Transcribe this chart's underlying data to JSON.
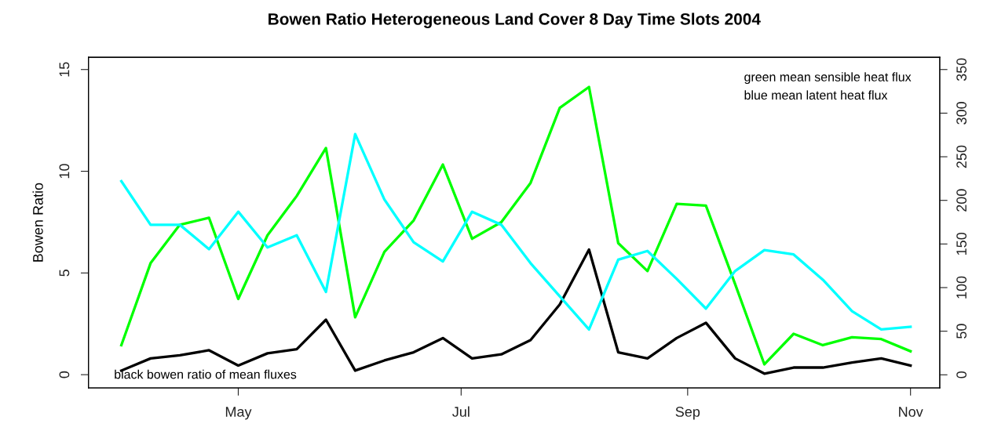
{
  "chart_data": {
    "type": "line",
    "title": "Bowen Ratio Heterogeneous Land Cover 8 Day Time Slots 2004",
    "ylabel": "Bowen Ratio",
    "x": [
      "2004-03-30",
      "2004-04-07",
      "2004-04-15",
      "2004-04-23",
      "2004-05-01",
      "2004-05-09",
      "2004-05-17",
      "2004-05-25",
      "2004-06-02",
      "2004-06-10",
      "2004-06-18",
      "2004-06-26",
      "2004-07-04",
      "2004-07-12",
      "2004-07-20",
      "2004-07-28",
      "2004-08-05",
      "2004-08-13",
      "2004-08-21",
      "2004-08-29",
      "2004-09-06",
      "2004-09-14",
      "2004-09-22",
      "2004-09-30",
      "2004-10-08",
      "2004-10-16",
      "2004-10-24",
      "2004-11-01"
    ],
    "series": [
      {
        "color": "#00ff00",
        "axis": "y2",
        "values": [
          34,
          128,
          172,
          180,
          87,
          160,
          205,
          260,
          66,
          141,
          177,
          241,
          156,
          175,
          220,
          306,
          330,
          151,
          119,
          196,
          194,
          104,
          12,
          47,
          34,
          43,
          41,
          27
        ]
      },
      {
        "color": "#00ffff",
        "axis": "y2",
        "values": [
          222,
          172,
          172,
          144,
          187,
          146,
          160,
          95,
          276,
          201,
          152,
          130,
          187,
          172,
          128,
          90,
          52,
          132,
          142,
          110,
          76,
          119,
          143,
          138,
          109,
          73,
          52,
          55
        ]
      },
      {
        "color": "#000000",
        "values": [
          0.2,
          0.8,
          0.95,
          1.2,
          0.45,
          1.05,
          1.25,
          2.7,
          0.2,
          0.7,
          1.1,
          1.8,
          0.8,
          1.0,
          1.7,
          3.45,
          6.15,
          1.1,
          0.8,
          1.8,
          2.55,
          0.8,
          0.05,
          0.35,
          0.35,
          0.6,
          0.8,
          0.45
        ]
      }
    ],
    "xlim": [
      "2004-03-21",
      "2004-11-09"
    ],
    "xticks": [
      {
        "value": "2004-05-01",
        "label": "May"
      },
      {
        "value": "2004-07-01",
        "label": "Jul"
      },
      {
        "value": "2004-09-01",
        "label": "Sep"
      },
      {
        "value": "2004-11-01",
        "label": "Nov"
      }
    ],
    "ylim": [
      -0.65,
      15.6
    ],
    "yticks": [
      0,
      5,
      10,
      15
    ],
    "y2lim": [
      -15,
      364
    ],
    "y2ticks": [
      0,
      50,
      100,
      150,
      200,
      250,
      300,
      350
    ],
    "grid": false,
    "marker": "none",
    "line_style": "solid",
    "annotations": [
      "green mean sensible heat flux",
      "blue mean latent heat flux",
      "black bowen ratio of mean fluxes"
    ]
  }
}
